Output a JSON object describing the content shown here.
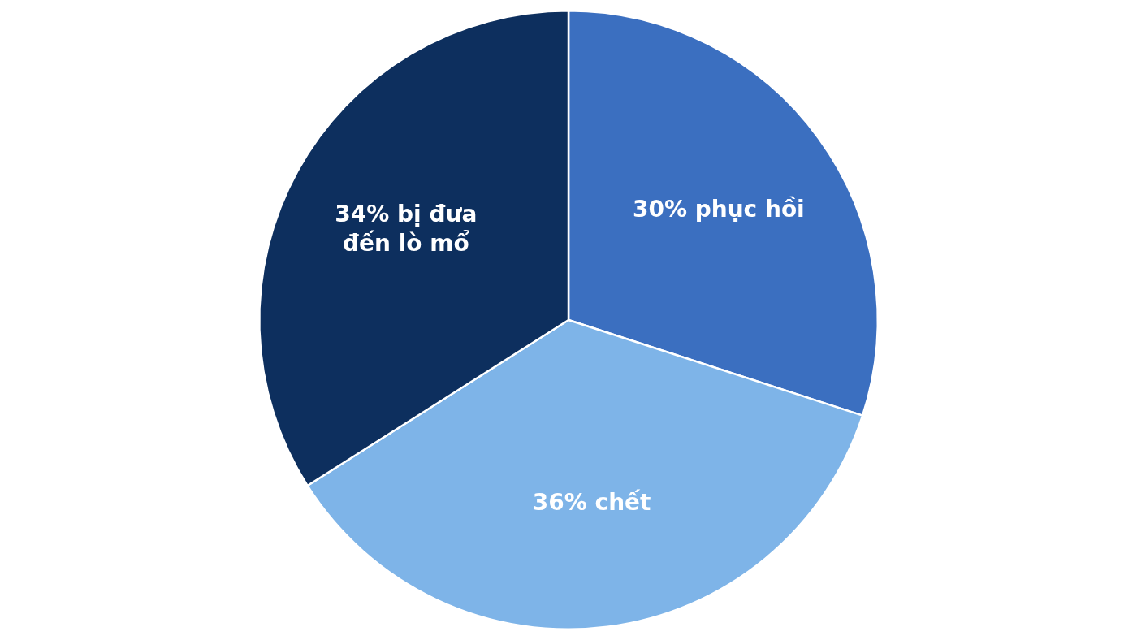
{
  "chart_data": {
    "type": "pie",
    "categories": [
      "30% phục hồi",
      "36% chết",
      "34% bị đưa\nđến lò mổ"
    ],
    "values": [
      30,
      36,
      34
    ],
    "colors": [
      "#3B6FC0",
      "#7EB4E8",
      "#0D2F5E"
    ]
  }
}
